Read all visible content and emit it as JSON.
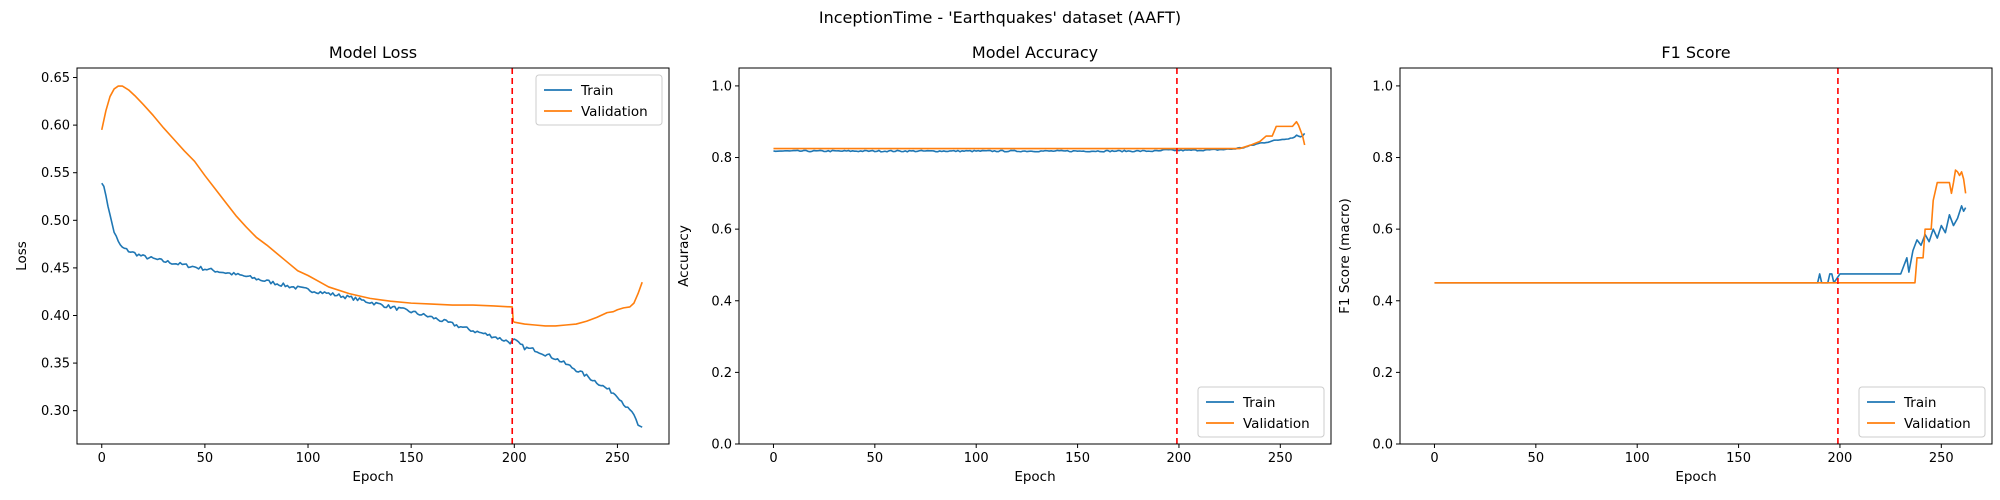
{
  "figure_title": "InceptionTime - 'Earthquakes' dataset (AAFT)",
  "colors": {
    "train": "#1f77b4",
    "validation": "#ff7f0e",
    "marker_line": "#ff0000"
  },
  "chart_data": [
    {
      "type": "line",
      "title": "Model Loss",
      "xlabel": "Epoch",
      "ylabel": "Loss",
      "xlim": [
        -12,
        275
      ],
      "ylim": [
        0.265,
        0.66
      ],
      "xticks": [
        0,
        50,
        100,
        150,
        200,
        250
      ],
      "yticks": [
        0.3,
        0.35,
        0.4,
        0.45,
        0.5,
        0.55,
        0.6,
        0.65
      ],
      "ytick_labels": [
        "0.30",
        "0.35",
        "0.40",
        "0.45",
        "0.50",
        "0.55",
        "0.60",
        "0.65"
      ],
      "vline": 199,
      "legend": {
        "position": "top-right",
        "entries": [
          "Train",
          "Validation"
        ]
      },
      "grid": false,
      "series": [
        {
          "name": "Train",
          "color": "#1f77b4",
          "noise": 0.002,
          "points": [
            [
              0,
              0.541
            ],
            [
              2,
              0.527
            ],
            [
              4,
              0.505
            ],
            [
              6,
              0.488
            ],
            [
              8,
              0.477
            ],
            [
              10,
              0.471
            ],
            [
              15,
              0.466
            ],
            [
              20,
              0.462
            ],
            [
              30,
              0.457
            ],
            [
              40,
              0.453
            ],
            [
              50,
              0.449
            ],
            [
              60,
              0.445
            ],
            [
              70,
              0.441
            ],
            [
              80,
              0.436
            ],
            [
              90,
              0.431
            ],
            [
              100,
              0.427
            ],
            [
              110,
              0.423
            ],
            [
              120,
              0.419
            ],
            [
              130,
              0.414
            ],
            [
              140,
              0.409
            ],
            [
              150,
              0.404
            ],
            [
              160,
              0.398
            ],
            [
              170,
              0.391
            ],
            [
              180,
              0.384
            ],
            [
              190,
              0.378
            ],
            [
              198,
              0.372
            ],
            [
              200,
              0.374
            ],
            [
              205,
              0.366
            ],
            [
              210,
              0.364
            ],
            [
              220,
              0.355
            ],
            [
              230,
              0.343
            ],
            [
              240,
              0.33
            ],
            [
              250,
              0.316
            ],
            [
              255,
              0.302
            ],
            [
              258,
              0.296
            ],
            [
              260,
              0.283
            ],
            [
              262,
              0.282
            ]
          ]
        },
        {
          "name": "Validation",
          "color": "#ff7f0e",
          "noise": 0,
          "points": [
            [
              0,
              0.595
            ],
            [
              2,
              0.615
            ],
            [
              4,
              0.63
            ],
            [
              6,
              0.638
            ],
            [
              8,
              0.641
            ],
            [
              10,
              0.641
            ],
            [
              13,
              0.637
            ],
            [
              16,
              0.631
            ],
            [
              20,
              0.622
            ],
            [
              25,
              0.61
            ],
            [
              30,
              0.597
            ],
            [
              35,
              0.585
            ],
            [
              40,
              0.573
            ],
            [
              45,
              0.562
            ],
            [
              50,
              0.547
            ],
            [
              55,
              0.533
            ],
            [
              60,
              0.519
            ],
            [
              65,
              0.505
            ],
            [
              70,
              0.493
            ],
            [
              75,
              0.482
            ],
            [
              80,
              0.474
            ],
            [
              85,
              0.465
            ],
            [
              90,
              0.456
            ],
            [
              95,
              0.447
            ],
            [
              100,
              0.442
            ],
            [
              105,
              0.436
            ],
            [
              110,
              0.43
            ],
            [
              120,
              0.423
            ],
            [
              130,
              0.418
            ],
            [
              140,
              0.415
            ],
            [
              150,
              0.413
            ],
            [
              160,
              0.412
            ],
            [
              170,
              0.411
            ],
            [
              180,
              0.411
            ],
            [
              190,
              0.41
            ],
            [
              199,
              0.409
            ],
            [
              199.5,
              0.394
            ],
            [
              200,
              0.393
            ],
            [
              205,
              0.391
            ],
            [
              210,
              0.39
            ],
            [
              215,
              0.389
            ],
            [
              220,
              0.389
            ],
            [
              225,
              0.39
            ],
            [
              230,
              0.391
            ],
            [
              235,
              0.394
            ],
            [
              240,
              0.398
            ],
            [
              245,
              0.403
            ],
            [
              248,
              0.404
            ],
            [
              250,
              0.406
            ],
            [
              253,
              0.408
            ],
            [
              256,
              0.409
            ],
            [
              258,
              0.413
            ],
            [
              260,
              0.423
            ],
            [
              262,
              0.435
            ]
          ]
        }
      ]
    },
    {
      "type": "line",
      "title": "Model Accuracy",
      "xlabel": "Epoch",
      "ylabel": "Accuracy",
      "xlim": [
        -17,
        275
      ],
      "ylim": [
        0.0,
        1.05
      ],
      "xticks": [
        0,
        50,
        100,
        150,
        200,
        250
      ],
      "yticks": [
        0.0,
        0.2,
        0.4,
        0.6,
        0.8,
        1.0
      ],
      "ytick_labels": [
        "0.0",
        "0.2",
        "0.4",
        "0.6",
        "0.8",
        "1.0"
      ],
      "vline": 199,
      "legend": {
        "position": "bottom-right",
        "entries": [
          "Train",
          "Validation"
        ]
      },
      "grid": false,
      "series": [
        {
          "name": "Train",
          "color": "#1f77b4",
          "noise": 0.002,
          "points": [
            [
              0,
              0.818
            ],
            [
              190,
              0.818
            ],
            [
              193,
              0.821
            ],
            [
              200,
              0.82
            ],
            [
              215,
              0.821
            ],
            [
              225,
              0.823
            ],
            [
              232,
              0.828
            ],
            [
              240,
              0.84
            ],
            [
              248,
              0.848
            ],
            [
              252,
              0.852
            ],
            [
              256,
              0.855
            ],
            [
              258,
              0.862
            ],
            [
              260,
              0.858
            ],
            [
              262,
              0.866
            ]
          ]
        },
        {
          "name": "Validation",
          "color": "#ff7f0e",
          "noise": 0,
          "points": [
            [
              0,
              0.825
            ],
            [
              230,
              0.825
            ],
            [
              236,
              0.836
            ],
            [
              240,
              0.845
            ],
            [
              243,
              0.86
            ],
            [
              246,
              0.86
            ],
            [
              248,
              0.887
            ],
            [
              256,
              0.887
            ],
            [
              258,
              0.9
            ],
            [
              259,
              0.89
            ],
            [
              260,
              0.875
            ],
            [
              261,
              0.86
            ],
            [
              262,
              0.835
            ]
          ]
        }
      ]
    },
    {
      "type": "line",
      "title": "F1 Score",
      "xlabel": "Epoch",
      "ylabel": "F1 Score (macro)",
      "xlim": [
        -17,
        275
      ],
      "ylim": [
        0.0,
        1.05
      ],
      "xticks": [
        0,
        50,
        100,
        150,
        200,
        250
      ],
      "yticks": [
        0.0,
        0.2,
        0.4,
        0.6,
        0.8,
        1.0
      ],
      "ytick_labels": [
        "0.0",
        "0.2",
        "0.4",
        "0.6",
        "0.8",
        "1.0"
      ],
      "vline": 199,
      "legend": {
        "position": "bottom-right",
        "entries": [
          "Train",
          "Validation"
        ]
      },
      "grid": false,
      "series": [
        {
          "name": "Train",
          "color": "#1f77b4",
          "noise": 0,
          "points": [
            [
              0,
              0.45
            ],
            [
              189,
              0.45
            ],
            [
              190,
              0.475
            ],
            [
              191,
              0.45
            ],
            [
              194,
              0.45
            ],
            [
              195,
              0.475
            ],
            [
              196,
              0.475
            ],
            [
              197,
              0.45
            ],
            [
              200,
              0.475
            ],
            [
              230,
              0.475
            ],
            [
              233,
              0.52
            ],
            [
              234,
              0.48
            ],
            [
              236,
              0.54
            ],
            [
              238,
              0.57
            ],
            [
              240,
              0.555
            ],
            [
              242,
              0.585
            ],
            [
              244,
              0.565
            ],
            [
              246,
              0.6
            ],
            [
              248,
              0.575
            ],
            [
              250,
              0.61
            ],
            [
              252,
              0.59
            ],
            [
              254,
              0.64
            ],
            [
              256,
              0.61
            ],
            [
              258,
              0.63
            ],
            [
              260,
              0.665
            ],
            [
              261,
              0.65
            ],
            [
              262,
              0.66
            ]
          ]
        },
        {
          "name": "Validation",
          "color": "#ff7f0e",
          "noise": 0,
          "points": [
            [
              0,
              0.45
            ],
            [
              237,
              0.45
            ],
            [
              238,
              0.52
            ],
            [
              241,
              0.52
            ],
            [
              242,
              0.6
            ],
            [
              245,
              0.6
            ],
            [
              246,
              0.68
            ],
            [
              248,
              0.73
            ],
            [
              254,
              0.73
            ],
            [
              255,
              0.7
            ],
            [
              256,
              0.73
            ],
            [
              257,
              0.765
            ],
            [
              258,
              0.76
            ],
            [
              259,
              0.75
            ],
            [
              260,
              0.76
            ],
            [
              261,
              0.74
            ],
            [
              262,
              0.7
            ]
          ]
        }
      ]
    }
  ]
}
